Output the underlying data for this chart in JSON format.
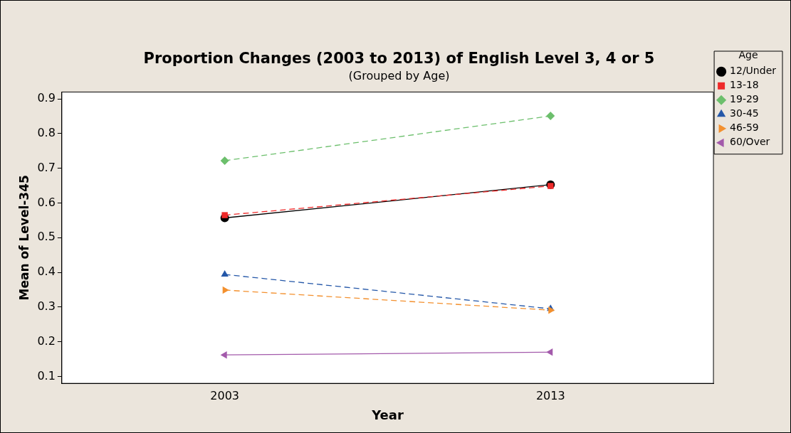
{
  "chart_data": {
    "type": "line",
    "title": "Proportion Changes (2003 to 2013) of English Level 3, 4 or 5",
    "subtitle": "(Grouped by Age)",
    "xlabel": "Year",
    "ylabel": "Mean of Level-345",
    "legend_title": "Age",
    "categories": [
      "2003",
      "2013"
    ],
    "series": [
      {
        "name": "12/Under",
        "color": "#000000",
        "values": [
          0.557,
          0.653
        ],
        "marker": "circle",
        "line_style": "solid"
      },
      {
        "name": "13-18",
        "color": "#ee2a2a",
        "values": [
          0.565,
          0.649
        ],
        "marker": "square",
        "line_style": "dashed"
      },
      {
        "name": "19-29",
        "color": "#6cbf6c",
        "values": [
          0.722,
          0.851
        ],
        "marker": "diamond",
        "line_style": "dashed"
      },
      {
        "name": "30-45",
        "color": "#2457a8",
        "values": [
          0.394,
          0.295
        ],
        "marker": "triangle",
        "line_style": "dashed"
      },
      {
        "name": "46-59",
        "color": "#f3902e",
        "values": [
          0.349,
          0.291
        ],
        "marker": "triangle-right",
        "line_style": "dashed"
      },
      {
        "name": "60/Over",
        "color": "#a35aab",
        "values": [
          0.162,
          0.17
        ],
        "marker": "triangle-left",
        "line_style": "solid"
      }
    ],
    "ylim": [
      0.08,
      0.92
    ],
    "yticks": [
      0.1,
      0.2,
      0.3,
      0.4,
      0.5,
      0.6,
      0.7,
      0.8,
      0.9
    ],
    "grid": false,
    "legend": "right"
  }
}
